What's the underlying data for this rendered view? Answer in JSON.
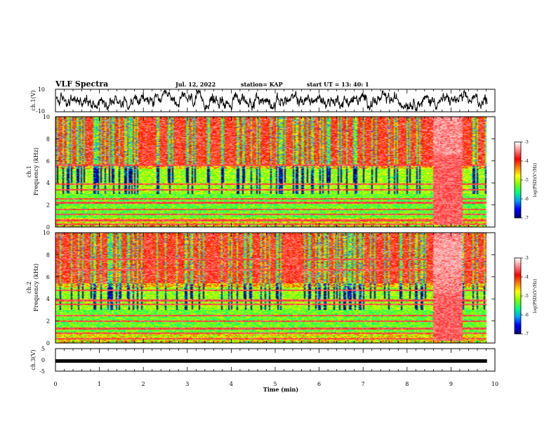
{
  "header": {
    "title": "VLF Spectra",
    "date": "Jul. 12, 2022",
    "station": "station= KAP",
    "start": "start  UT =  13: 40: 1"
  },
  "chart_data": [
    {
      "type": "line",
      "panel": "ch1-waveform",
      "ylabel": "ch.1(V)",
      "ylim": [
        -10,
        10
      ],
      "yticks": [
        "10",
        "-10"
      ],
      "xlim": [
        0,
        10
      ]
    },
    {
      "type": "heatmap",
      "panel": "ch1-spectrogram",
      "ylabel_line1": "ch.1",
      "ylabel_line2": "Frequency (kHz)",
      "ylim": [
        0,
        10
      ],
      "yticks": [
        "0",
        "2",
        "4",
        "6",
        "8",
        "10"
      ],
      "xlim": [
        0,
        10.0
      ],
      "colorbar": {
        "label": "log(PSD)(V²/Hz)",
        "range": [
          -7,
          -3
        ],
        "ticks": [
          "-3",
          "-4",
          "-5",
          "-6",
          "-7"
        ],
        "colors": [
          "#000080",
          "#0000ff",
          "#00a0ff",
          "#00ff80",
          "#80ff00",
          "#ffff00",
          "#ff8000",
          "#ff0000",
          "#ff8080",
          "#ffffff"
        ]
      },
      "features": {
        "data_end_min": 9.82,
        "disturbance_min": [
          8.58,
          9.25
        ],
        "noise_band_khz": [
          0.8,
          5.3
        ],
        "lines_khz": [
          0.25,
          0.6,
          1.15,
          1.6,
          2.2,
          2.55,
          3.4,
          3.9,
          5.6
        ]
      }
    },
    {
      "type": "heatmap",
      "panel": "ch2-spectrogram",
      "ylabel_line1": "ch.2",
      "ylabel_line2": "Frequency (kHz)",
      "ylim": [
        0,
        10
      ],
      "yticks": [
        "0",
        "2",
        "4",
        "6",
        "8",
        "10"
      ],
      "xlim": [
        0,
        10.0
      ],
      "colorbar": {
        "label": "log(PSD)(V²/Hz)",
        "range": [
          -7,
          -3
        ],
        "ticks": [
          "-3",
          "-4",
          "-5",
          "-6",
          "-7"
        ]
      },
      "features": {
        "data_end_min": 9.82,
        "disturbance_min": [
          8.58,
          9.25
        ],
        "noise_band_khz": [
          0.8,
          5.0
        ],
        "lines_khz": [
          0.4,
          0.9,
          1.3,
          2.0,
          2.5,
          3.5,
          3.85,
          4.8,
          6.6,
          7.6
        ]
      }
    },
    {
      "type": "line",
      "panel": "ch3-waveform",
      "ylabel": "ch.3(V)",
      "ylim": [
        -5,
        5
      ],
      "yticks": [
        "5",
        "0",
        "-5"
      ],
      "level_v": -0.5,
      "xlim": [
        0,
        10
      ]
    },
    {
      "type": "axis",
      "xlabel": "Time (min)",
      "xticks": [
        "0",
        "1",
        "2",
        "3",
        "4",
        "5",
        "6",
        "7",
        "8",
        "9",
        "10"
      ]
    }
  ]
}
